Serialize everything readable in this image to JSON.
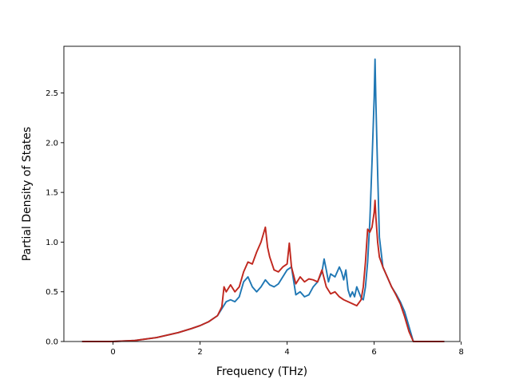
{
  "chart_data": {
    "type": "line",
    "title": "",
    "xlabel": "Frequency (THz)",
    "ylabel": "Partial Density of States",
    "xlim": [
      -1.13,
      7.97
    ],
    "ylim": [
      0.0,
      2.97
    ],
    "xticks": [
      0,
      2,
      4,
      6,
      8
    ],
    "yticks": [
      0.0,
      0.5,
      1.0,
      1.5,
      2.0,
      2.5
    ],
    "xtick_labels": [
      "0",
      "2",
      "4",
      "6",
      "8"
    ],
    "ytick_labels": [
      "0.0",
      "0.5",
      "1.0",
      "1.5",
      "2.0",
      "2.5"
    ],
    "grid": false,
    "legend": "none",
    "series": [
      {
        "color": "#1f77b4",
        "x": [
          -0.7,
          0.0,
          0.5,
          1.0,
          1.5,
          1.8,
          2.0,
          2.2,
          2.4,
          2.5,
          2.6,
          2.7,
          2.8,
          2.9,
          3.0,
          3.1,
          3.2,
          3.3,
          3.4,
          3.5,
          3.6,
          3.7,
          3.8,
          3.9,
          4.0,
          4.1,
          4.2,
          4.3,
          4.4,
          4.5,
          4.6,
          4.7,
          4.8,
          4.85,
          4.9,
          4.95,
          5.0,
          5.1,
          5.2,
          5.25,
          5.3,
          5.35,
          5.4,
          5.45,
          5.5,
          5.55,
          5.6,
          5.7,
          5.75,
          5.8,
          5.85,
          5.9,
          5.95,
          6.0,
          6.02,
          6.04,
          6.08,
          6.12,
          6.2,
          6.3,
          6.4,
          6.5,
          6.6,
          6.7,
          6.8,
          6.9,
          7.6
        ],
        "y": [
          0.0,
          0.0,
          0.01,
          0.04,
          0.09,
          0.13,
          0.16,
          0.2,
          0.26,
          0.33,
          0.4,
          0.42,
          0.4,
          0.45,
          0.6,
          0.65,
          0.55,
          0.5,
          0.55,
          0.62,
          0.57,
          0.55,
          0.58,
          0.65,
          0.72,
          0.75,
          0.47,
          0.5,
          0.45,
          0.47,
          0.55,
          0.6,
          0.7,
          0.83,
          0.72,
          0.6,
          0.68,
          0.65,
          0.75,
          0.7,
          0.62,
          0.72,
          0.52,
          0.45,
          0.5,
          0.45,
          0.55,
          0.44,
          0.42,
          0.55,
          0.8,
          1.2,
          1.8,
          2.45,
          2.84,
          2.4,
          1.7,
          1.05,
          0.75,
          0.65,
          0.55,
          0.48,
          0.4,
          0.3,
          0.15,
          0.0,
          0.0
        ]
      },
      {
        "color": "#c0271e",
        "x": [
          -0.7,
          0.0,
          0.5,
          1.0,
          1.5,
          1.8,
          2.0,
          2.2,
          2.4,
          2.5,
          2.55,
          2.6,
          2.7,
          2.8,
          2.9,
          3.0,
          3.1,
          3.2,
          3.3,
          3.4,
          3.5,
          3.55,
          3.6,
          3.7,
          3.8,
          3.9,
          4.0,
          4.05,
          4.1,
          4.2,
          4.3,
          4.4,
          4.5,
          4.6,
          4.7,
          4.8,
          4.9,
          5.0,
          5.1,
          5.2,
          5.3,
          5.4,
          5.5,
          5.6,
          5.7,
          5.75,
          5.8,
          5.85,
          5.9,
          5.95,
          6.0,
          6.02,
          6.04,
          6.08,
          6.12,
          6.2,
          6.3,
          6.4,
          6.5,
          6.6,
          6.7,
          6.8,
          6.9,
          7.6
        ],
        "y": [
          0.0,
          0.0,
          0.01,
          0.04,
          0.09,
          0.13,
          0.16,
          0.2,
          0.26,
          0.35,
          0.55,
          0.5,
          0.57,
          0.5,
          0.55,
          0.7,
          0.8,
          0.78,
          0.9,
          1.0,
          1.15,
          0.95,
          0.85,
          0.72,
          0.7,
          0.75,
          0.78,
          0.99,
          0.75,
          0.58,
          0.65,
          0.6,
          0.63,
          0.62,
          0.6,
          0.72,
          0.55,
          0.48,
          0.5,
          0.45,
          0.42,
          0.4,
          0.38,
          0.36,
          0.42,
          0.55,
          0.8,
          1.13,
          1.1,
          1.15,
          1.3,
          1.42,
          1.25,
          1.0,
          0.85,
          0.75,
          0.65,
          0.55,
          0.47,
          0.38,
          0.25,
          0.1,
          0.0,
          0.0
        ]
      }
    ]
  }
}
